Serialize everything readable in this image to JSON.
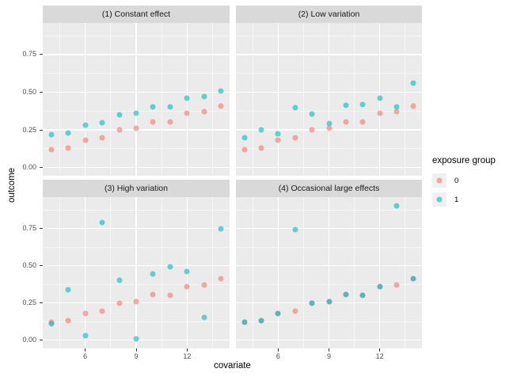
{
  "chart_data": {
    "type": "scatter",
    "title": "",
    "xlabel": "covariate",
    "ylabel": "outcome",
    "facets": [
      "(1) Constant effect",
      "(2) Low variation",
      "(3) High variation",
      "(4) Occasional large effects"
    ],
    "x": [
      4,
      5,
      6,
      7,
      8,
      9,
      10,
      11,
      12,
      13,
      14
    ],
    "xlim": [
      3.5,
      14.5
    ],
    "ylim": [
      -0.055,
      0.96
    ],
    "grid": "white major+minor gridlines on gray panel",
    "x_ticks": {
      "major": [
        6,
        9,
        12
      ],
      "minor": [
        4.5,
        7.5,
        10.5,
        13.5
      ],
      "labels": [
        "6",
        "9",
        "12"
      ]
    },
    "y_ticks": {
      "major": [
        0,
        0.25,
        0.5,
        0.75
      ],
      "minor": [
        0.125,
        0.375,
        0.625,
        0.875
      ],
      "labels": [
        "0.00",
        "0.25",
        "0.50",
        "0.75"
      ]
    },
    "legend": {
      "title": "exposure group",
      "position": "right",
      "items": [
        {
          "label": "0"
        },
        {
          "label": "1"
        }
      ]
    },
    "colors": {
      "group0": "#F8766D",
      "group1": "#00BFC4",
      "point_alpha": 0.62,
      "panel_bg": "#EBEBEB",
      "strip_bg": "#D9D9D9",
      "grid": "#FFFFFF",
      "legend_key_bg": "#F0F0F0"
    },
    "panels": [
      {
        "title": "(1) Constant effect",
        "series": [
          {
            "name": "0",
            "values": [
              0.12,
              0.13,
              0.18,
              0.195,
              0.25,
              0.26,
              0.305,
              0.3,
              0.36,
              0.37,
              0.41
            ]
          },
          {
            "name": "1",
            "values": [
              0.22,
              0.23,
              0.28,
              0.295,
              0.35,
              0.36,
              0.405,
              0.4,
              0.46,
              0.47,
              0.51
            ]
          }
        ]
      },
      {
        "title": "(2) Low variation",
        "series": [
          {
            "name": "0",
            "values": [
              0.12,
              0.13,
              0.18,
              0.195,
              0.25,
              0.26,
              0.305,
              0.3,
              0.36,
              0.37,
              0.41
            ]
          },
          {
            "name": "1",
            "values": [
              0.2,
              0.25,
              0.225,
              0.395,
              0.355,
              0.29,
              0.415,
              0.42,
              0.46,
              0.405,
              0.56
            ]
          }
        ]
      },
      {
        "title": "(3) High variation",
        "series": [
          {
            "name": "0",
            "values": [
              0.12,
              0.13,
              0.18,
              0.195,
              0.25,
              0.26,
              0.305,
              0.3,
              0.36,
              0.37,
              0.41
            ]
          },
          {
            "name": "1",
            "values": [
              0.11,
              0.34,
              0.03,
              0.79,
              0.4,
              0.01,
              0.445,
              0.49,
              0.46,
              0.15,
              0.75
            ]
          }
        ]
      },
      {
        "title": "(4) Occasional large effects",
        "series": [
          {
            "name": "0",
            "values": [
              0.12,
              0.13,
              0.18,
              0.195,
              0.25,
              0.26,
              0.305,
              0.3,
              0.36,
              0.37,
              0.41
            ]
          },
          {
            "name": "1",
            "values": [
              0.12,
              0.13,
              0.18,
              0.74,
              0.25,
              0.26,
              0.305,
              0.3,
              0.36,
              0.9,
              0.41
            ]
          }
        ]
      }
    ]
  }
}
